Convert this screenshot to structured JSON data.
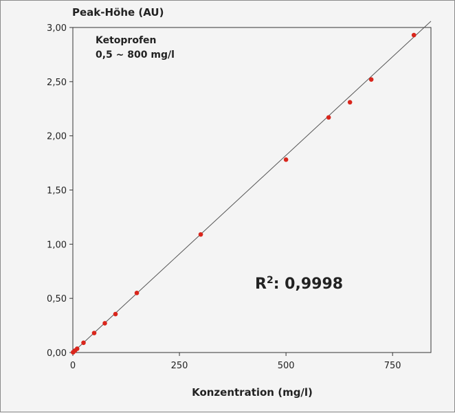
{
  "chart_data": {
    "type": "scatter",
    "ylabel": "Peak-Höhe (AU)",
    "xlabel": "Konzentration (mg/l)",
    "annotation_title": "Ketoprofen",
    "annotation_range": "0,5 ~ 800 mg/l",
    "r2_label": "R",
    "r2_sup": "2",
    "r2_value": ": 0,9998",
    "xlim": [
      0,
      840
    ],
    "ylim": [
      0,
      3.0
    ],
    "xticks": [
      0,
      250,
      500,
      750
    ],
    "xtick_labels": [
      "0",
      "250",
      "500",
      "750"
    ],
    "yticks": [
      0,
      0.5,
      1.0,
      1.5,
      2.0,
      2.5,
      3.0
    ],
    "ytick_labels": [
      "0,00",
      "0,50",
      "1,00",
      "1,50",
      "2,00",
      "2,50",
      "3,00"
    ],
    "grid": false,
    "points": [
      {
        "x": 0.5,
        "y": 0.002
      },
      {
        "x": 1,
        "y": 0.004
      },
      {
        "x": 5,
        "y": 0.018
      },
      {
        "x": 10,
        "y": 0.035
      },
      {
        "x": 25,
        "y": 0.09
      },
      {
        "x": 50,
        "y": 0.18
      },
      {
        "x": 75,
        "y": 0.27
      },
      {
        "x": 100,
        "y": 0.355
      },
      {
        "x": 150,
        "y": 0.55
      },
      {
        "x": 300,
        "y": 1.09
      },
      {
        "x": 500,
        "y": 1.78
      },
      {
        "x": 600,
        "y": 2.17
      },
      {
        "x": 650,
        "y": 2.31
      },
      {
        "x": 700,
        "y": 2.52
      },
      {
        "x": 800,
        "y": 2.93
      }
    ],
    "fit": {
      "slope": 0.00364,
      "intercept": 0.0
    },
    "point_color": "#d9261c",
    "line_color": "#555555"
  }
}
